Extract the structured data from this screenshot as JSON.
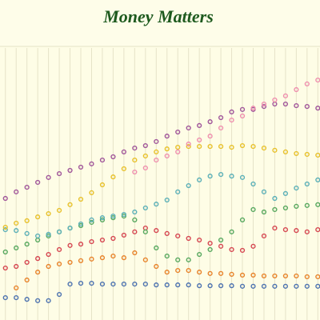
{
  "chart_data": {
    "type": "scatter",
    "title": "Money Matters",
    "x": [
      0,
      1,
      2,
      3,
      4,
      5,
      6,
      7,
      8,
      9,
      10,
      11,
      12,
      13,
      14,
      15,
      16,
      17,
      18,
      19,
      20,
      21,
      22,
      23,
      24,
      25,
      26,
      27,
      28,
      29
    ],
    "xlim": [
      -0.5,
      29.2
    ],
    "ylim": [
      0,
      100
    ],
    "xticks": [
      0,
      1,
      2,
      3,
      4,
      5,
      6,
      7,
      8,
      9,
      10,
      11,
      12,
      13,
      14,
      15,
      16,
      17,
      18,
      19,
      20,
      21,
      22,
      23,
      24,
      25,
      26,
      27,
      28,
      29
    ],
    "grid": true,
    "series": [
      {
        "color": "#4c72b0",
        "values": [
          8.2,
          8.2,
          7.6,
          7.1,
          7.1,
          9.4,
          13.2,
          13.5,
          13.5,
          13.2,
          13.2,
          13.2,
          13.2,
          13.2,
          12.9,
          12.9,
          12.9,
          12.9,
          12.6,
          12.6,
          12.6,
          12.6,
          12.4,
          12.4,
          12.4,
          12.4,
          12.4,
          12.4,
          12.4,
          12.4
        ]
      },
      {
        "color": "#e8832a",
        "values": [
          null,
          11.8,
          14.7,
          17.6,
          19.7,
          20.6,
          21.2,
          21.8,
          22.4,
          22.9,
          23.5,
          22.9,
          24.7,
          22.1,
          19.7,
          17.6,
          18.2,
          18.2,
          17.6,
          17.1,
          17.1,
          16.8,
          16.5,
          16.5,
          16.2,
          16.2,
          16.2,
          16.2,
          15.9,
          15.9
        ]
      },
      {
        "color": "#d64550",
        "values": [
          19.1,
          19.7,
          21.2,
          22.6,
          24.1,
          25.9,
          27.4,
          27.9,
          28.8,
          29.4,
          30.0,
          31.2,
          32.4,
          33.8,
          32.9,
          31.8,
          30.9,
          30.0,
          29.4,
          28.2,
          27.1,
          25.9,
          25.6,
          27.1,
          30.9,
          33.8,
          33.2,
          32.9,
          32.4,
          33.2
        ]
      },
      {
        "color": "#56a85e",
        "values": [
          25.0,
          26.5,
          27.9,
          29.4,
          30.9,
          32.4,
          33.8,
          34.7,
          35.9,
          36.8,
          37.6,
          38.2,
          36.8,
          32.4,
          26.5,
          23.5,
          22.1,
          22.1,
          24.1,
          25.9,
          29.4,
          32.4,
          36.8,
          40.6,
          39.7,
          40.6,
          41.2,
          41.8,
          42.1,
          42.4
        ]
      },
      {
        "color": "#5bb0b8",
        "values": [
          33.2,
          32.9,
          31.8,
          30.9,
          31.5,
          32.4,
          33.8,
          35.3,
          36.8,
          37.6,
          38.2,
          38.8,
          39.7,
          41.2,
          42.6,
          44.1,
          47.1,
          49.4,
          51.5,
          52.9,
          53.5,
          52.9,
          52.4,
          50.0,
          47.1,
          44.7,
          46.5,
          48.5,
          50.0,
          51.5
        ]
      },
      {
        "color": "#e8c12a",
        "values": [
          34.1,
          35.6,
          36.5,
          37.9,
          39.1,
          40.3,
          42.4,
          44.4,
          46.8,
          49.7,
          52.6,
          55.6,
          58.8,
          60.3,
          61.8,
          62.9,
          63.5,
          63.8,
          63.8,
          63.8,
          63.8,
          63.5,
          64.1,
          63.8,
          63.2,
          62.4,
          61.8,
          61.2,
          60.9,
          60.6
        ]
      },
      {
        "color": "#a0559a",
        "values": [
          44.7,
          47.1,
          48.8,
          50.6,
          52.4,
          53.8,
          55.0,
          56.2,
          57.4,
          58.8,
          60.0,
          61.8,
          63.2,
          64.1,
          65.6,
          67.6,
          69.1,
          70.6,
          71.5,
          72.9,
          74.4,
          76.5,
          77.4,
          77.4,
          78.5,
          79.4,
          79.4,
          78.8,
          78.5,
          77.9
        ]
      },
      {
        "color": "#ef8fae",
        "values": [
          null,
          null,
          null,
          null,
          null,
          null,
          null,
          null,
          null,
          null,
          null,
          null,
          54.4,
          55.9,
          58.8,
          60.3,
          61.8,
          64.7,
          66.2,
          67.6,
          70.6,
          73.5,
          75.0,
          77.9,
          79.4,
          80.9,
          82.4,
          84.7,
          86.8,
          88.2
        ]
      }
    ]
  }
}
